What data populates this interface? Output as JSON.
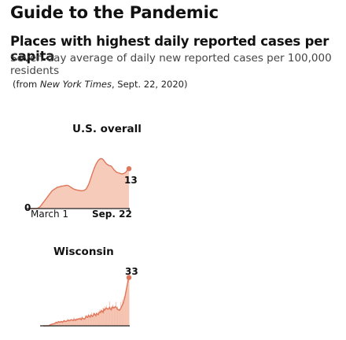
{
  "header": {
    "title": "Guide to the Pandemic",
    "subtitle": "Places with highest daily reported cases per capita",
    "description": "Seven-day average of daily new reported cases per 100,000 residents",
    "source_prefix": "(from ",
    "source_pub": "New York Times",
    "source_suffix": ", Sept. 22, 2020)"
  },
  "colors": {
    "area_fill": "#f6cbb9",
    "line": "#e0765a",
    "bars": "#f3b9a4",
    "axis": "#222222"
  },
  "chart_data": [
    {
      "type": "area",
      "title": "U.S. overall",
      "x_start_label": "March 1",
      "x_end_label": "Sep. 22",
      "ylim": [
        0,
        20
      ],
      "baseline_label": "0",
      "last_value_label": "13",
      "values": [
        0,
        0,
        0,
        0,
        0,
        0,
        0,
        0,
        0.1,
        0.2,
        0.4,
        0.6,
        1,
        1.4,
        1.8,
        2.2,
        2.6,
        3,
        3.4,
        3.8,
        4.2,
        4.6,
        5,
        5.4,
        5.8,
        6,
        6.2,
        6.4,
        6.6,
        6.8,
        7,
        7,
        7.1,
        7.2,
        7.3,
        7.3,
        7.4,
        7.4,
        7.5,
        7.5,
        7.6,
        7.5,
        7.4,
        7.2,
        7,
        6.8,
        6.6,
        6.4,
        6.3,
        6.2,
        6.1,
        6,
        6,
        5.9,
        5.9,
        5.8,
        5.8,
        5.8,
        5.9,
        6,
        6.2,
        6.5,
        7,
        7.6,
        8.3,
        9.2,
        10.1,
        11,
        11.9,
        12.7,
        13.5,
        14.2,
        14.8,
        15.3,
        15.7,
        16,
        16.2,
        16.3,
        16.2,
        16,
        15.6,
        15.2,
        14.8,
        14.5,
        14.3,
        14.1,
        14,
        13.9,
        13.8,
        13.4,
        13,
        12.6,
        12.3,
        12,
        11.8,
        11.7,
        11.6,
        11.5,
        11.4,
        11.3,
        11.3,
        11.4,
        11.5,
        11.7,
        12,
        12.4,
        12.8,
        13
      ]
    },
    {
      "type": "area",
      "title": "Wisconsin",
      "ylim": [
        0,
        36
      ],
      "last_value_label": "33",
      "values": [
        0,
        0,
        0,
        0,
        0,
        0,
        0,
        0.2,
        0.5,
        0.8,
        1,
        1.2,
        1.3,
        1.4,
        1.6,
        2,
        2.3,
        2,
        2.4,
        2.9,
        2.6,
        2.5,
        3,
        2.8,
        2.4,
        3.2,
        3.5,
        3,
        3,
        3.2,
        3.7,
        3.9,
        3.4,
        3.6,
        4,
        4.2,
        3.9,
        3.6,
        4.4,
        4.1,
        3.7,
        4.6,
        4.3,
        4.8,
        4.5,
        5,
        4.7,
        4.2,
        5.5,
        5,
        4.9,
        4.6,
        5.3,
        6.4,
        6,
        5.8,
        7.1,
        6.6,
        5.9,
        7.4,
        7,
        6.4,
        7.2,
        8.4,
        7.6,
        6.9,
        8.5,
        8,
        7.6,
        8.9,
        9.6,
        9.1,
        10.4,
        10,
        9.1,
        11.3,
        10.7,
        11.6,
        12.2,
        11.8,
        11.3,
        11.9,
        12.6,
        11.5,
        10.9,
        12.3,
        13,
        12.2,
        12.5,
        13.1,
        12.8,
        12,
        11.2,
        11,
        10.6,
        11.2,
        12.1,
        13.3,
        14.4,
        15.7,
        17.6,
        19.8,
        22.6,
        25.5,
        28.2,
        31,
        33
      ]
    }
  ]
}
